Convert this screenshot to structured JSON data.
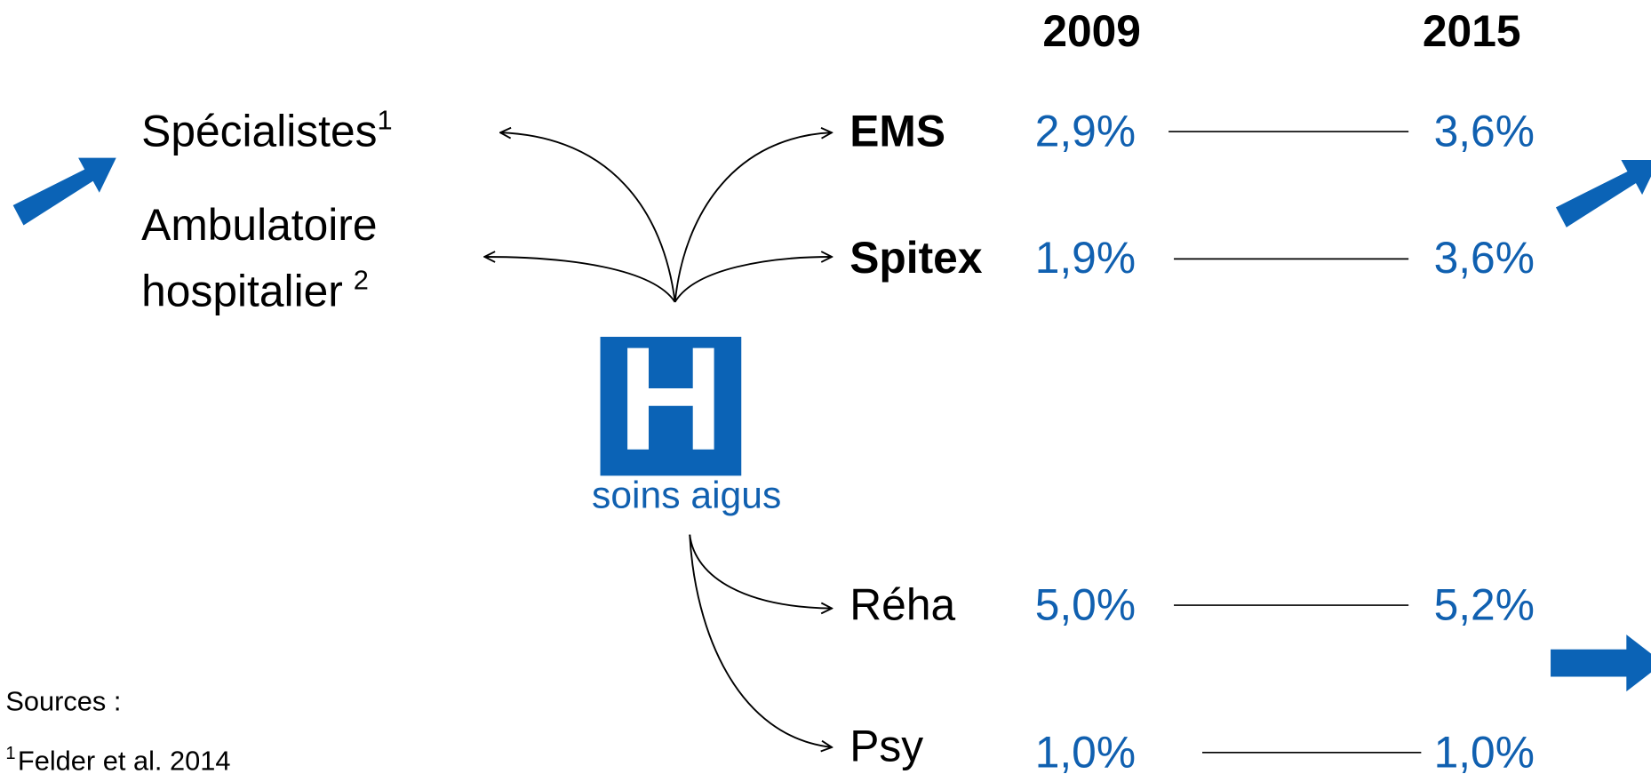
{
  "years": [
    "2009",
    "2015"
  ],
  "rows": [
    {
      "label": "EMS",
      "v2009": "2,9%",
      "v2015": "3,6%"
    },
    {
      "label": "Spitex",
      "v2009": "1,9%",
      "v2015": "3,6%"
    },
    {
      "label": "Réha",
      "v2009": "5,0%",
      "v2015": "5,2%"
    },
    {
      "label": "Psy",
      "v2009": "1,0%",
      "v2015": "1,0%"
    }
  ],
  "left": [
    {
      "text": "Spécialistes",
      "note": "1"
    },
    {
      "lines": [
        "Ambulatoire",
        "hospitalier"
      ],
      "note": "2"
    }
  ],
  "hospital": {
    "icon": "H",
    "label": "soins aigus"
  },
  "sources": {
    "title": "Sources :",
    "items": [
      {
        "note": "1",
        "text": "Felder et al. 2014"
      }
    ]
  }
}
